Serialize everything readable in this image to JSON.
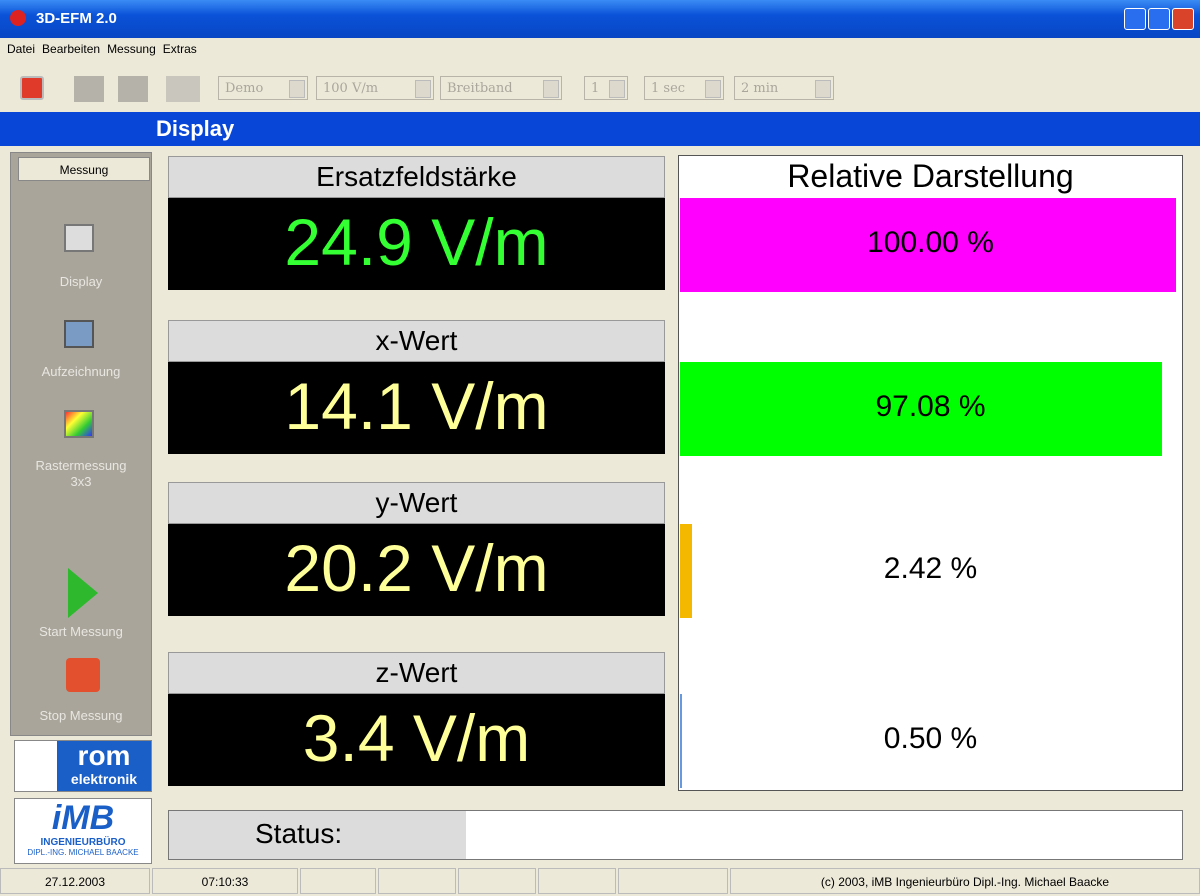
{
  "window": {
    "title": "3D-EFM 2.0"
  },
  "menu": [
    "Datei",
    "Bearbeiten",
    "Messung",
    "Extras"
  ],
  "toolbar": {
    "combos": [
      "Demo",
      "100 V/m",
      "Breitband",
      "1",
      "1 sec",
      "2 min"
    ]
  },
  "header": "Display",
  "sidebar": {
    "button": "Messung",
    "items": [
      {
        "label": "Display"
      },
      {
        "label": "Aufzeichnung"
      },
      {
        "label": "Rastermessung",
        "sub": "3x3"
      },
      {
        "label": "Start Messung"
      },
      {
        "label": "Stop Messung"
      }
    ]
  },
  "logos": {
    "rom": "rom",
    "rom_sub": "elektronik",
    "imb": "iMB",
    "imb_sub1": "INGENIEURBÜRO",
    "imb_sub2": "DIPL.-ING. MICHAEL BAACKE"
  },
  "readings": [
    {
      "label": "Ersatzfeldstärke",
      "value": "24.9 V/m",
      "color": "#33ff33"
    },
    {
      "label": "x-Wert",
      "value": "14.1 V/m",
      "color": "#ffff99"
    },
    {
      "label": "y-Wert",
      "value": "20.2 V/m",
      "color": "#ffff99"
    },
    {
      "label": "z-Wert",
      "value": "3.4 V/m",
      "color": "#ffff99"
    }
  ],
  "relative": {
    "title": "Relative Darstellung",
    "bars": [
      {
        "value": 100.0,
        "label": "100.00 %",
        "color": "#ff00ff"
      },
      {
        "value": 97.08,
        "label": "97.08 %",
        "color": "#00ff00"
      },
      {
        "value": 2.42,
        "label": "2.42 %",
        "color": "#f5b800"
      },
      {
        "value": 0.5,
        "label": "0.50 %",
        "color": "#6699dd"
      }
    ]
  },
  "status": {
    "label": "Status:"
  },
  "statusbar": [
    "27.12.2003",
    "07:10:33",
    "(c) 2003,  iMB  Ingenieurbüro Dipl.-Ing. Michael Baacke"
  ]
}
